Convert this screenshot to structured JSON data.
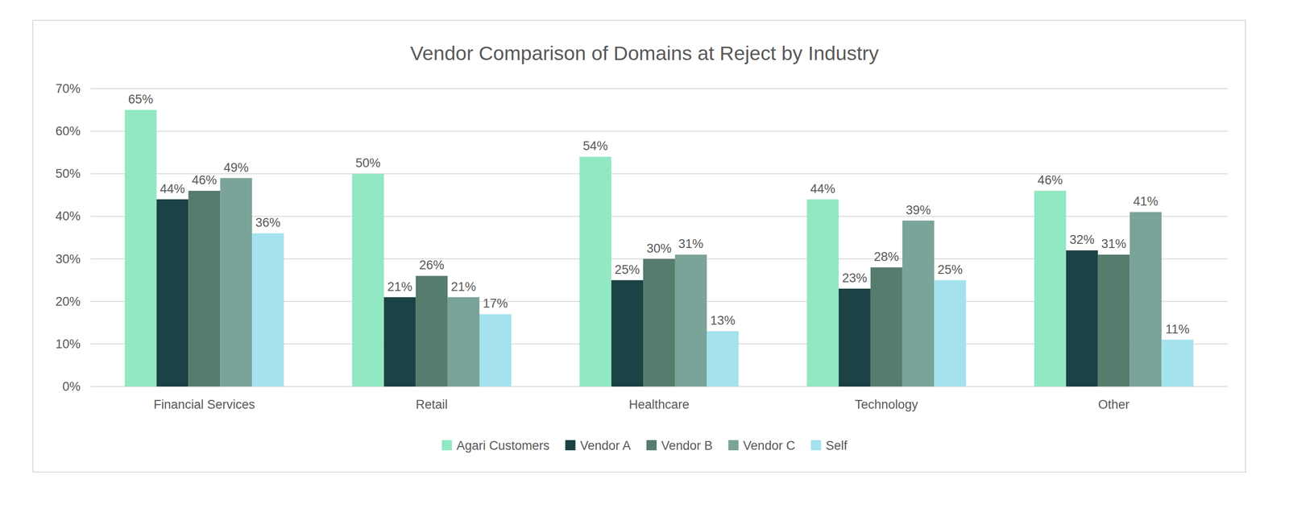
{
  "chart_data": {
    "type": "bar",
    "title": "Vendor Comparison of Domains at Reject by Industry",
    "categories": [
      "Financial Services",
      "Retail",
      "Healthcare",
      "Technology",
      "Other"
    ],
    "series": [
      {
        "name": "Agari Customers",
        "color": "#92e8c3",
        "values": [
          65,
          50,
          54,
          44,
          46
        ],
        "value_labels": [
          "65%",
          "50%",
          "54%",
          "44%",
          "46%"
        ]
      },
      {
        "name": "Vendor A",
        "color": "#1b4244",
        "values": [
          44,
          21,
          25,
          23,
          32
        ],
        "value_labels": [
          "44%",
          "21%",
          "25%",
          "23%",
          "32%"
        ]
      },
      {
        "name": "Vendor B",
        "color": "#567c6e",
        "values": [
          46,
          26,
          30,
          28,
          31
        ],
        "value_labels": [
          "46%",
          "26%",
          "30%",
          "28%",
          "31%"
        ]
      },
      {
        "name": "Vendor C",
        "color": "#7aa399",
        "values": [
          49,
          21,
          31,
          39,
          41
        ],
        "value_labels": [
          "49%",
          "21%",
          "31%",
          "39%",
          "41%"
        ]
      },
      {
        "name": "Self",
        "color": "#a4e2ee",
        "values": [
          36,
          17,
          13,
          25,
          11
        ],
        "value_labels": [
          "36%",
          "17%",
          "13%",
          "25%",
          "11%"
        ]
      }
    ],
    "ylim": [
      0,
      70
    ],
    "yticks": [
      {
        "value": 0,
        "label": "0%"
      },
      {
        "value": 10,
        "label": "10%"
      },
      {
        "value": 20,
        "label": "20%"
      },
      {
        "value": 30,
        "label": "30%"
      },
      {
        "value": 40,
        "label": "40%"
      },
      {
        "value": 50,
        "label": "50%"
      },
      {
        "value": 60,
        "label": "60%"
      },
      {
        "value": 70,
        "label": "70%"
      }
    ],
    "grid": true,
    "legend": "bottom",
    "data_labels": true
  }
}
